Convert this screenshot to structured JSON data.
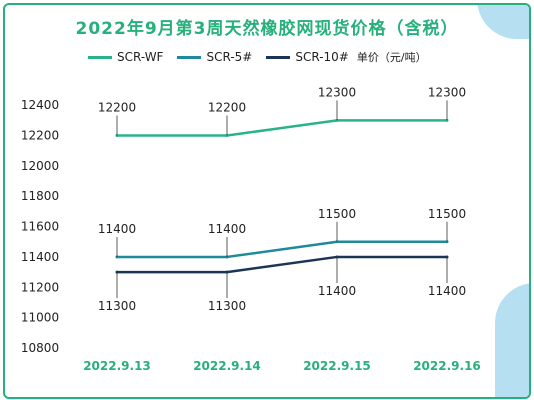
{
  "title": "2022年9月第3周天然橡胶网现货价格（含税）",
  "unit_label": "单价（元/吨）",
  "colors": {
    "accent": "#27b07c",
    "frame": "#27b07c",
    "deco": "#9ed6ec"
  },
  "chart_data": {
    "type": "line",
    "title": "2022年9月第3周天然橡胶网现货价格（含税）",
    "x": [
      "2022.9.13",
      "2022.9.14",
      "2022.9.15",
      "2022.9.16"
    ],
    "ylim": [
      10800,
      12500
    ],
    "yticks": [
      10800,
      11000,
      11200,
      11400,
      11600,
      11800,
      12000,
      12200,
      12400
    ],
    "grid": false,
    "legend_position": "top",
    "series": [
      {
        "name": "SCR-WF",
        "values": [
          12200,
          12200,
          12300,
          12300
        ],
        "color": "#2ab38a",
        "label_side": "above"
      },
      {
        "name": "SCR-5#",
        "values": [
          11400,
          11400,
          11500,
          11500
        ],
        "color": "#1e8a9c",
        "label_side": "above"
      },
      {
        "name": "SCR-10#",
        "values": [
          11300,
          11300,
          11400,
          11400
        ],
        "color": "#1b3556",
        "label_side": "below"
      }
    ]
  }
}
